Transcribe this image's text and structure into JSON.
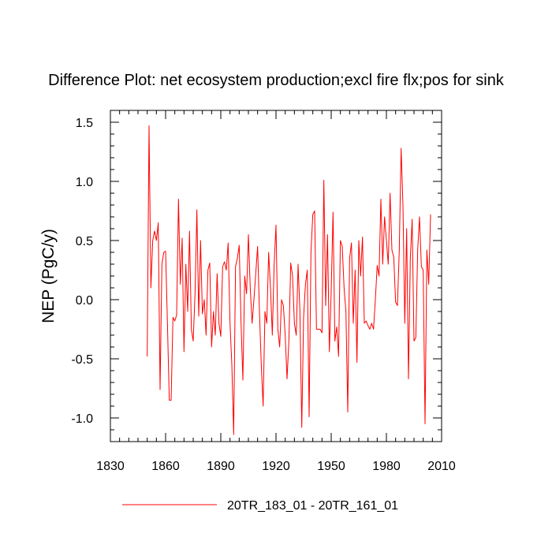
{
  "chart_data": {
    "type": "line",
    "title": "Difference Plot: net ecosystem production;excl fire flx;pos for sink",
    "xlabel": "",
    "ylabel": "NEP  (PgC/y)",
    "xlim": [
      1830,
      2010
    ],
    "ylim": [
      -1.2,
      1.6
    ],
    "xticks": [
      1830,
      1860,
      1890,
      1920,
      1950,
      1980,
      2010
    ],
    "xtick_labels": [
      "1830",
      "1860",
      "1890",
      "1920",
      "1950",
      "1980",
      "2010"
    ],
    "yticks": [
      1.5,
      1.0,
      0.5,
      0.0,
      -0.5,
      -1.0
    ],
    "ytick_labels": [
      "1.5",
      "1.0",
      "0.5",
      "0.0",
      "-0.5",
      "-1.0"
    ],
    "legend": {
      "position": "bottom-center"
    },
    "series": [
      {
        "name": "20TR_183_01 - 20TR_161_01",
        "color": "#ff0000",
        "x_start": 1850,
        "x_step": 1,
        "values": [
          -0.48,
          1.47,
          0.1,
          0.5,
          0.58,
          0.5,
          0.65,
          -0.76,
          0.3,
          0.4,
          0.41,
          -0.2,
          -0.85,
          -0.85,
          -0.15,
          -0.18,
          -0.13,
          0.85,
          0.13,
          0.52,
          -0.44,
          0.3,
          -0.1,
          0.58,
          -0.25,
          -0.35,
          0.05,
          0.76,
          -0.14,
          0.5,
          -0.12,
          0.0,
          -0.3,
          0.25,
          0.31,
          -0.4,
          -0.1,
          -0.3,
          0.22,
          -0.2,
          -0.31,
          0.28,
          0.32,
          0.25,
          0.48,
          -0.2,
          -0.55,
          -1.14,
          0.28,
          0.35,
          0.46,
          -0.2,
          -0.68,
          0.2,
          0.05,
          0.55,
          0.1,
          -0.2,
          0.0,
          0.22,
          0.45,
          -0.1,
          -0.55,
          -0.9,
          -0.1,
          -0.2,
          0.4,
          0.1,
          -0.3,
          0.3,
          0.63,
          -0.25,
          -0.4,
          0.0,
          -0.05,
          -0.3,
          -0.67,
          -0.35,
          0.31,
          0.2,
          -0.2,
          -0.3,
          0.3,
          -0.1,
          -1.08,
          -0.15,
          0.13,
          0.25,
          -0.99,
          0.4,
          0.72,
          0.75,
          -0.25,
          -0.25,
          -0.25,
          -0.28,
          1.01,
          -0.05,
          0.55,
          -0.44,
          0.07,
          0.74,
          -0.35,
          -0.23,
          -0.48,
          0.5,
          0.45,
          0.1,
          -0.1,
          -0.95,
          0.35,
          0.48,
          -0.2,
          0.25,
          -0.53,
          0.5,
          0.2,
          0.53,
          -0.2,
          -0.18,
          -0.22,
          -0.25,
          -0.2,
          -0.25,
          0.0,
          0.29,
          0.2,
          0.85,
          0.3,
          0.7,
          0.5,
          0.3,
          0.9,
          0.42,
          0.36,
          -0.02,
          -0.05,
          0.42,
          1.28,
          0.8,
          -0.2,
          0.6,
          -0.67,
          0.35,
          0.68,
          -0.35,
          -0.32,
          0.42,
          0.7,
          0.28,
          0.25,
          -1.05,
          0.42,
          0.13,
          0.72
        ]
      }
    ]
  }
}
